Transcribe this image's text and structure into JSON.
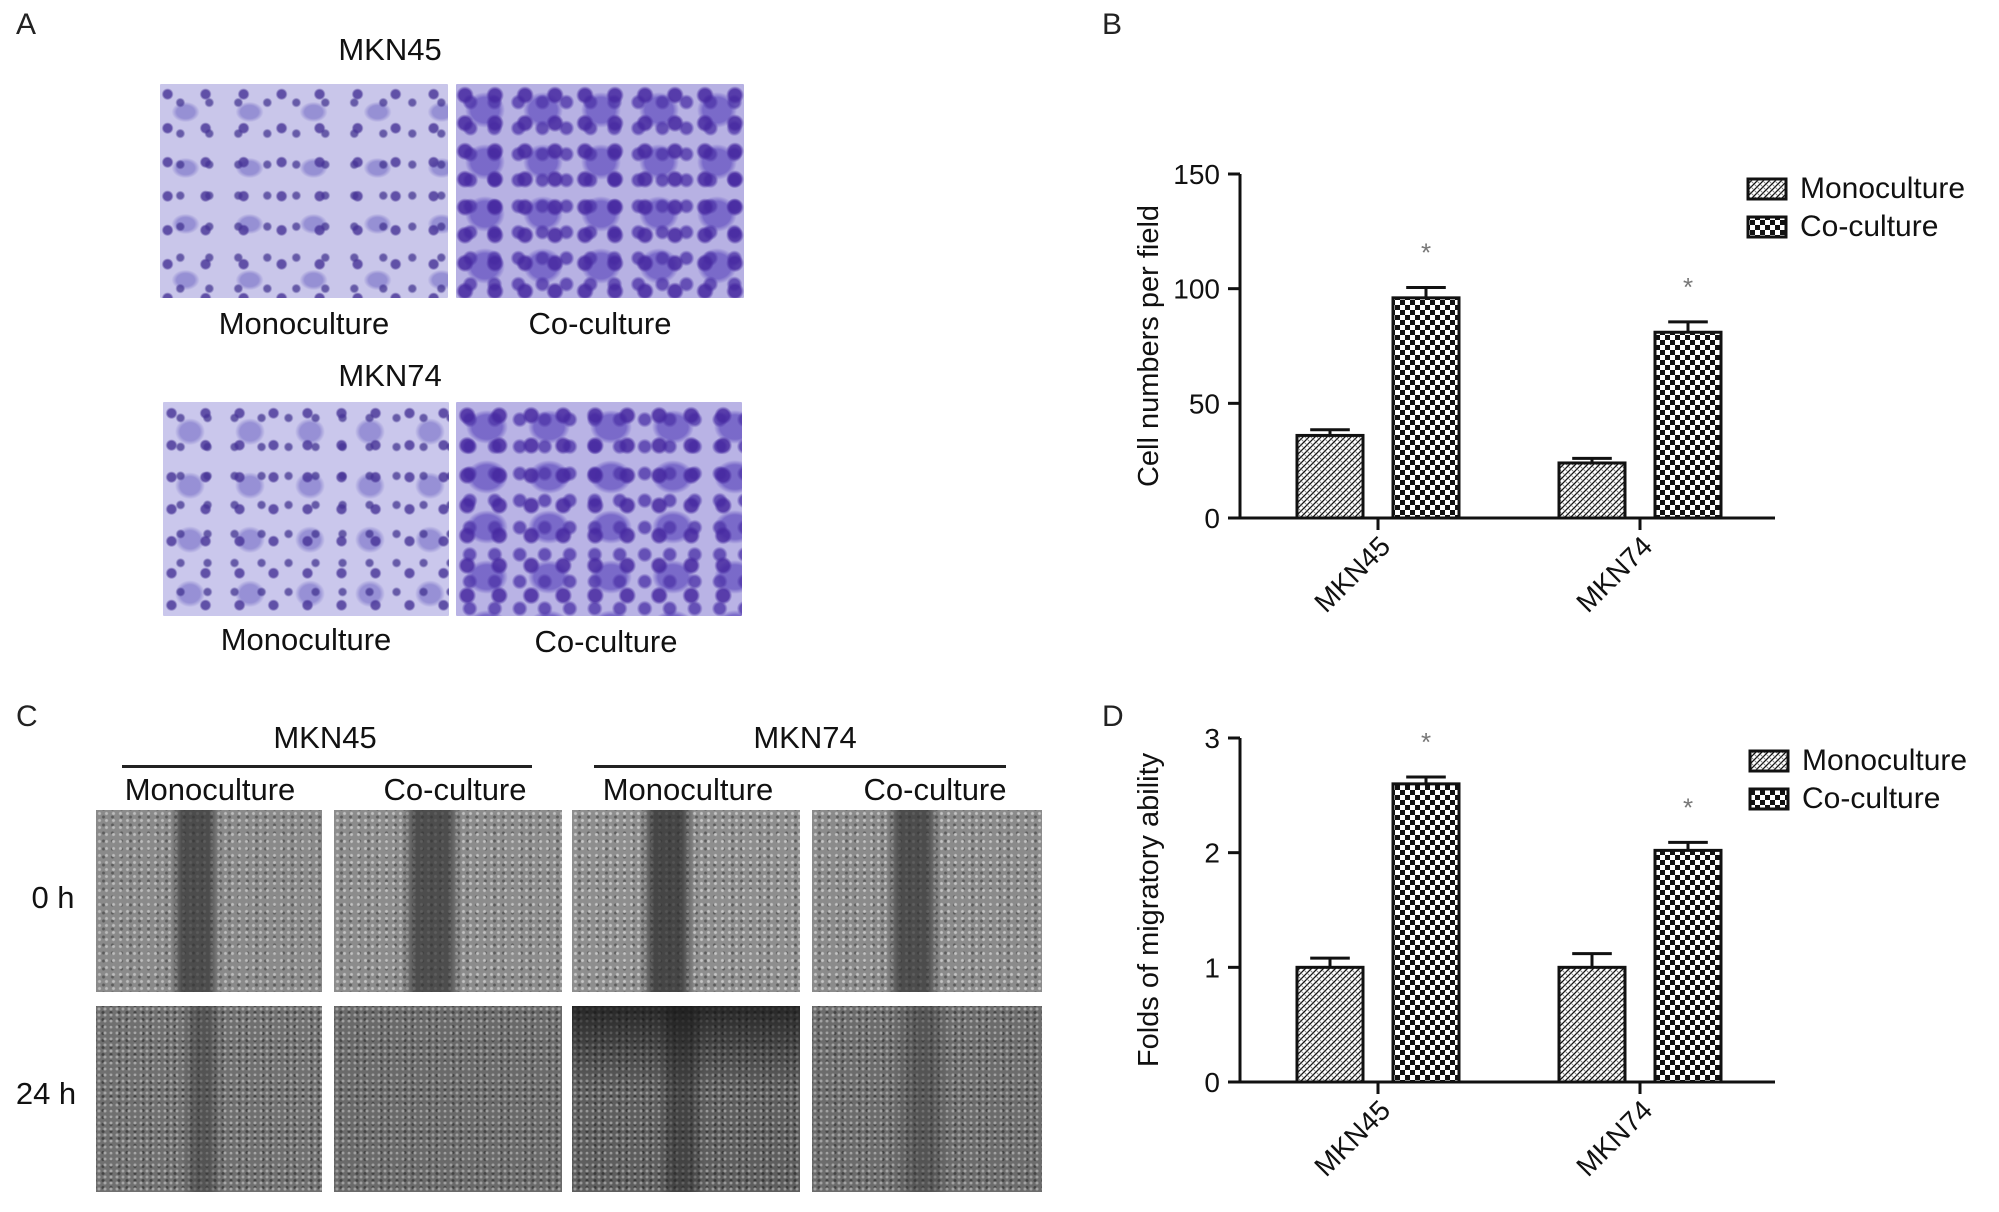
{
  "panels": {
    "a": {
      "label": "A",
      "rows": [
        {
          "title": "MKN45",
          "captions": [
            "Monoculture",
            "Co-culture"
          ]
        },
        {
          "title": "MKN74",
          "captions": [
            "Monoculture",
            "Co-culture"
          ]
        }
      ]
    },
    "b": {
      "label": "B"
    },
    "c": {
      "label": "C",
      "groups": [
        {
          "title": "MKN45",
          "conditions": [
            "Monoculture",
            "Co-culture"
          ]
        },
        {
          "title": "MKN74",
          "conditions": [
            "Monoculture",
            "Co-culture"
          ]
        }
      ],
      "times": [
        "0 h",
        "24 h"
      ]
    },
    "d": {
      "label": "D"
    }
  },
  "chart_data": [
    {
      "panel": "B",
      "type": "bar",
      "categories": [
        "MKN45",
        "MKN74"
      ],
      "series": [
        {
          "name": "Monoculture",
          "values": [
            36,
            24
          ],
          "errors": [
            2.5,
            2
          ]
        },
        {
          "name": "Co-culture",
          "values": [
            96,
            81
          ],
          "errors": [
            4.5,
            4.5
          ]
        }
      ],
      "significance": [
        {
          "category": "MKN45",
          "series": "Co-culture",
          "mark": "*"
        },
        {
          "category": "MKN74",
          "series": "Co-culture",
          "mark": "*"
        }
      ],
      "xlabel": "",
      "ylabel": "Cell numbers per field",
      "ylim": [
        0,
        150
      ],
      "yticks": [
        0,
        50,
        100,
        150
      ],
      "legend": "top-right",
      "grid": false
    },
    {
      "panel": "D",
      "type": "bar",
      "categories": [
        "MKN45",
        "MKN74"
      ],
      "series": [
        {
          "name": "Monoculture",
          "values": [
            1.0,
            1.0
          ],
          "errors": [
            0.08,
            0.12
          ]
        },
        {
          "name": "Co-culture",
          "values": [
            2.6,
            2.02
          ],
          "errors": [
            0.06,
            0.07
          ]
        }
      ],
      "significance": [
        {
          "category": "MKN45",
          "series": "Co-culture",
          "mark": "*"
        },
        {
          "category": "MKN74",
          "series": "Co-culture",
          "mark": "*"
        }
      ],
      "xlabel": "",
      "ylabel": "Folds of migratory ability",
      "ylim": [
        0,
        3
      ],
      "yticks": [
        0,
        1,
        2,
        3
      ],
      "legend": "top-right",
      "grid": false
    }
  ]
}
